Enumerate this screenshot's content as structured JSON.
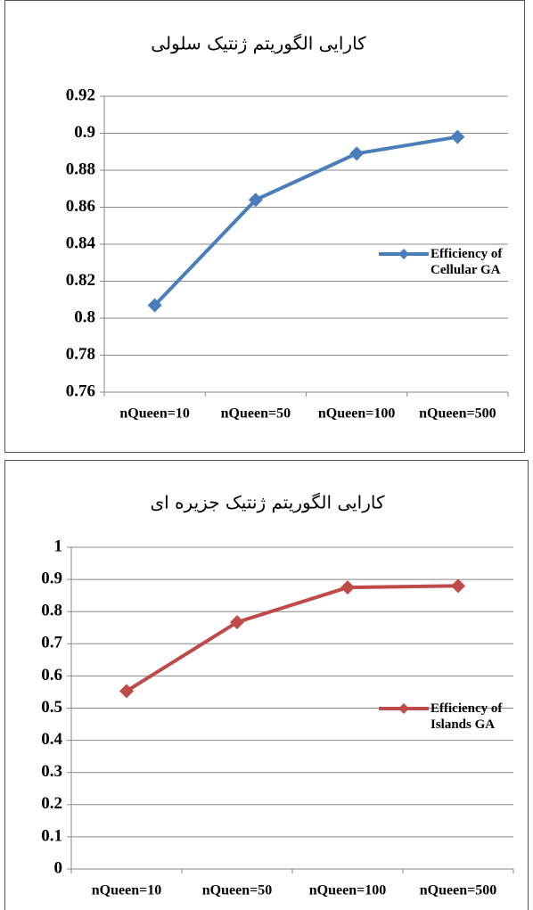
{
  "chart_data": [
    {
      "type": "line",
      "title": "کارایی الگوریتم ژنتیک سلولی",
      "categories": [
        "nQueen=10",
        "nQueen=50",
        "nQueen=100",
        "nQueen=500"
      ],
      "series": [
        {
          "name": "Efficiency of Cellular GA",
          "color": "#4a7ebb",
          "values": [
            0.807,
            0.864,
            0.889,
            0.898
          ]
        }
      ],
      "ylim": [
        0.76,
        0.92
      ],
      "yticks": [
        0.76,
        0.78,
        0.8,
        0.82,
        0.84,
        0.86,
        0.88,
        0.9,
        0.92
      ],
      "grid": true,
      "legend": "right"
    },
    {
      "type": "line",
      "title": "کارایی الگوریتم ژنتیک جزیره ای",
      "categories": [
        "nQueen=10",
        "nQueen=50",
        "nQueen=100",
        "nQueen=500"
      ],
      "series": [
        {
          "name": "Efficiency of Islands GA",
          "color": "#be4b48",
          "values": [
            0.553,
            0.767,
            0.875,
            0.88
          ]
        }
      ],
      "ylim": [
        0,
        1
      ],
      "yticks": [
        0,
        0.1,
        0.2,
        0.3,
        0.4,
        0.5,
        0.6,
        0.7,
        0.8,
        0.9,
        1
      ],
      "grid": true,
      "legend": "right"
    }
  ]
}
